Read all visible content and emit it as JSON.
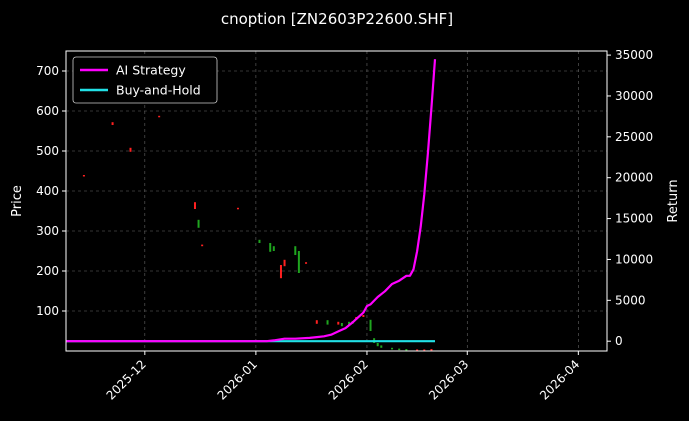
{
  "chart_data": {
    "type": "line",
    "title": "cnoption [ZN2603P22600.SHF]",
    "xlabel": "",
    "ylabel": "Price",
    "ylabel_right": "Return",
    "x_range": [
      "2025-11-09",
      "2026-04-09"
    ],
    "xticks": [
      "2025-12",
      "2026-01",
      "2026-02",
      "2026-03",
      "2026-04"
    ],
    "ylim_left": [
      0,
      750
    ],
    "yticks_left": [
      100,
      200,
      300,
      400,
      500,
      600,
      700
    ],
    "ylim_right": [
      -1200,
      35500
    ],
    "yticks_right": [
      0,
      5000,
      10000,
      15000,
      20000,
      25000,
      30000,
      35000
    ],
    "grid": true,
    "legend_position": "top-left",
    "colors": {
      "background": "#000000",
      "strategy": "#ff00ff",
      "buyhold": "#22e0e6",
      "up": "#ff2020",
      "down": "#1fa51f",
      "grid": "#666666"
    },
    "series": [
      {
        "name": "AI Strategy",
        "axis": "right",
        "points": [
          [
            "2025-11-09",
            0
          ],
          [
            "2025-12-01",
            0
          ],
          [
            "2025-12-15",
            0
          ],
          [
            "2026-01-01",
            0
          ],
          [
            "2026-01-04",
            0
          ],
          [
            "2026-01-06",
            100
          ],
          [
            "2026-01-09",
            300
          ],
          [
            "2026-01-12",
            300
          ],
          [
            "2026-01-16",
            400
          ],
          [
            "2026-01-18",
            500
          ],
          [
            "2026-01-20",
            600
          ],
          [
            "2026-01-22",
            800
          ],
          [
            "2026-01-24",
            1200
          ],
          [
            "2026-01-26",
            1600
          ],
          [
            "2026-01-28",
            2300
          ],
          [
            "2026-01-29",
            2700
          ],
          [
            "2026-01-31",
            3500
          ],
          [
            "2026-02-01",
            4300
          ],
          [
            "2026-02-02",
            4500
          ],
          [
            "2026-02-04",
            5400
          ],
          [
            "2026-02-06",
            6100
          ],
          [
            "2026-02-08",
            7000
          ],
          [
            "2026-02-10",
            7400
          ],
          [
            "2026-02-12",
            8000
          ],
          [
            "2026-02-13",
            8000
          ],
          [
            "2026-02-14",
            8800
          ],
          [
            "2026-02-15",
            11000
          ],
          [
            "2026-02-16",
            14000
          ],
          [
            "2026-02-17",
            18000
          ],
          [
            "2026-02-18",
            23000
          ],
          [
            "2026-02-19",
            28500
          ],
          [
            "2026-02-20",
            34500
          ]
        ]
      },
      {
        "name": "Buy-and-Hold",
        "axis": "right",
        "points": [
          [
            "2025-11-09",
            0
          ],
          [
            "2026-02-20",
            0
          ]
        ]
      }
    ],
    "candles": [
      {
        "date": "2025-11-14",
        "open": 437,
        "close": 440
      },
      {
        "date": "2025-11-22",
        "open": 565,
        "close": 572
      },
      {
        "date": "2025-11-27",
        "open": 498,
        "close": 508
      },
      {
        "date": "2025-12-05",
        "open": 585,
        "close": 588
      },
      {
        "date": "2025-12-15",
        "open": 355,
        "close": 372
      },
      {
        "date": "2025-12-16",
        "open": 328,
        "close": 308
      },
      {
        "date": "2025-12-17",
        "open": 262,
        "close": 266
      },
      {
        "date": "2025-12-27",
        "open": 355,
        "close": 358
      },
      {
        "date": "2026-01-02",
        "open": 278,
        "close": 270
      },
      {
        "date": "2026-01-05",
        "open": 270,
        "close": 248
      },
      {
        "date": "2026-01-06",
        "open": 262,
        "close": 250
      },
      {
        "date": "2026-01-08",
        "open": 182,
        "close": 215
      },
      {
        "date": "2026-01-09",
        "open": 212,
        "close": 228
      },
      {
        "date": "2026-01-12",
        "open": 262,
        "close": 240
      },
      {
        "date": "2026-01-13",
        "open": 250,
        "close": 195
      },
      {
        "date": "2026-01-15",
        "open": 218,
        "close": 222
      },
      {
        "date": "2026-01-18",
        "open": 68,
        "close": 77
      },
      {
        "date": "2026-01-21",
        "open": 77,
        "close": 66
      },
      {
        "date": "2026-01-24",
        "open": 66,
        "close": 73
      },
      {
        "date": "2026-01-25",
        "open": 70,
        "close": 62
      },
      {
        "date": "2026-01-27",
        "open": 73,
        "close": 63
      },
      {
        "date": "2026-01-28",
        "open": 75,
        "close": 68
      },
      {
        "date": "2026-01-29",
        "open": 78,
        "close": 85
      },
      {
        "date": "2026-01-31",
        "open": 85,
        "close": 90
      },
      {
        "date": "2026-02-02",
        "open": 78,
        "close": 50
      },
      {
        "date": "2026-02-03",
        "open": 32,
        "close": 20
      },
      {
        "date": "2026-02-04",
        "open": 20,
        "close": 12
      },
      {
        "date": "2026-02-05",
        "open": 14,
        "close": 8
      },
      {
        "date": "2026-02-08",
        "open": 8,
        "close": 4
      },
      {
        "date": "2026-02-10",
        "open": 6,
        "close": 3
      },
      {
        "date": "2026-02-12",
        "open": 5,
        "close": 2
      },
      {
        "date": "2026-02-15",
        "open": 2,
        "close": 4
      },
      {
        "date": "2026-02-17",
        "open": 2,
        "close": 4
      },
      {
        "date": "2026-02-19",
        "open": 3,
        "close": 5
      }
    ]
  }
}
